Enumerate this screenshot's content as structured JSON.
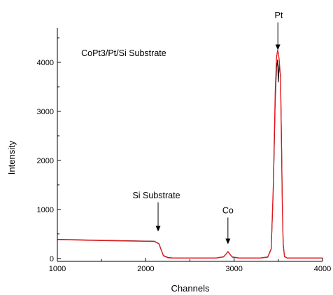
{
  "chart_data": {
    "type": "line",
    "title": "",
    "xlabel": "Channels",
    "ylabel": "Intensity",
    "xlim": [
      1000,
      4000
    ],
    "ylim": [
      -60,
      4700
    ],
    "x_ticks": [
      1000,
      2000,
      3000,
      4000
    ],
    "y_ticks": [
      0,
      1000,
      2000,
      3000,
      4000
    ],
    "grid": false,
    "legend": "none",
    "colors": {
      "measured": "#000000",
      "fit": "#e8161b"
    },
    "series": [
      {
        "role": "measured",
        "x": [
          1000,
          1500,
          2000,
          2100,
          2150,
          2170,
          2200,
          2250,
          2300,
          2800,
          2880,
          2910,
          2930,
          2950,
          2980,
          3050,
          3300,
          3380,
          3420,
          3445,
          3465,
          3480,
          3492,
          3500,
          3510,
          3525,
          3535,
          3545,
          3555,
          3570,
          3600,
          4000
        ],
        "y": [
          390,
          370,
          355,
          350,
          300,
          200,
          60,
          20,
          10,
          10,
          35,
          90,
          140,
          90,
          30,
          10,
          10,
          30,
          200,
          1500,
          3200,
          3900,
          4050,
          3600,
          3950,
          3700,
          2500,
          1200,
          300,
          40,
          10,
          10
        ]
      },
      {
        "role": "fit",
        "x": [
          1000,
          1500,
          2000,
          2100,
          2150,
          2170,
          2200,
          2250,
          2300,
          2800,
          2880,
          2910,
          2930,
          2950,
          2980,
          3050,
          3300,
          3380,
          3420,
          3445,
          3465,
          3480,
          3492,
          3500,
          3510,
          3525,
          3535,
          3545,
          3555,
          3570,
          3600,
          4000
        ],
        "y": [
          385,
          365,
          350,
          345,
          295,
          195,
          55,
          15,
          8,
          8,
          30,
          90,
          140,
          90,
          25,
          8,
          8,
          25,
          190,
          1600,
          3400,
          4100,
          4250,
          4200,
          4050,
          3700,
          2400,
          1100,
          280,
          35,
          8,
          8
        ]
      }
    ],
    "annotations": [
      {
        "text": "CoPt3/Pt/Si Substrate",
        "x": 1270,
        "y": 4130,
        "arrow_to": null
      },
      {
        "text": "Si Substrate",
        "x": 2120,
        "y": 1230,
        "arrow_to": [
          2140,
          550
        ]
      },
      {
        "text": "Co",
        "x": 2930,
        "y": 920,
        "arrow_to": [
          2930,
          290
        ]
      },
      {
        "text": "Pt",
        "x": 3505,
        "y": 4900,
        "arrow_to": [
          3495,
          4250
        ]
      }
    ]
  }
}
